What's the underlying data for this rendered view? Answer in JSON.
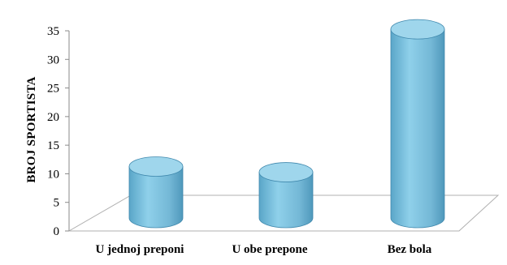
{
  "chart_data": {
    "type": "bar",
    "style": "3d-cylinder",
    "categories": [
      "U jednoj preponi",
      "U obe prepone",
      "Bez bola"
    ],
    "values": [
      9,
      8,
      33
    ],
    "title": "",
    "xlabel": "",
    "ylabel": "BROJ SPORTISTA",
    "ylim": [
      0,
      35
    ],
    "yticks": [
      0,
      5,
      10,
      15,
      20,
      25,
      30,
      35
    ],
    "legend": "none",
    "grid": false,
    "colors": {
      "bar_body": "#79bfdc",
      "bar_top": "#9fd6ec",
      "bar_edge": "#3f88ad",
      "floor_line": "#b0b0b0"
    }
  }
}
